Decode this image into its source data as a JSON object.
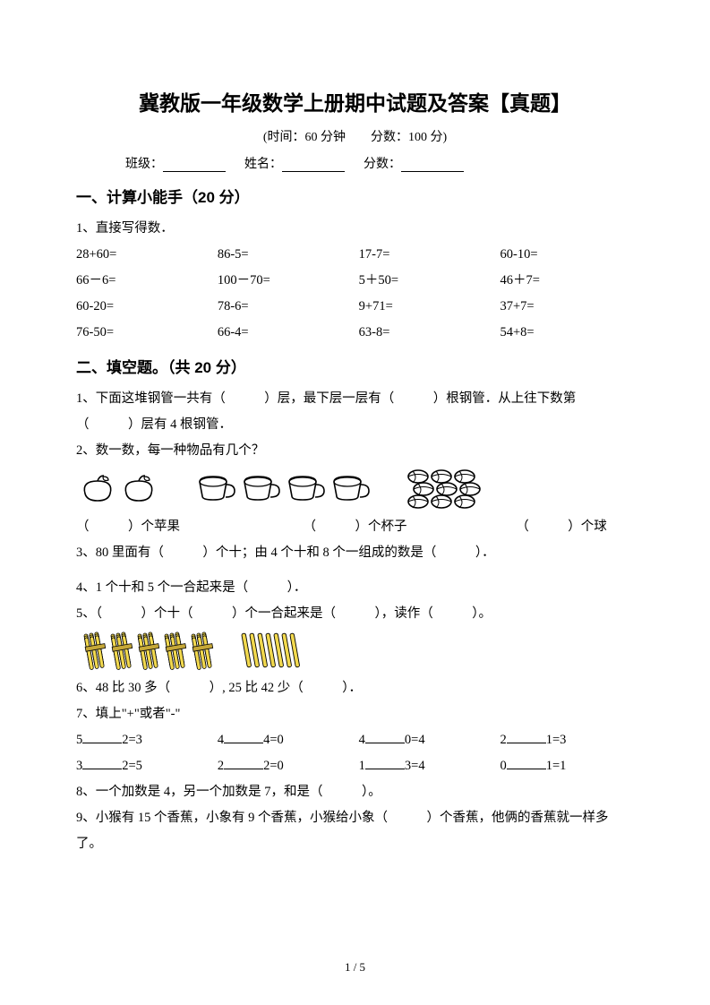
{
  "title": "冀教版一年级数学上册期中试题及答案【真题】",
  "meta": "(时间：60 分钟　　分数：100 分)",
  "id_labels": {
    "class": "班级：",
    "name": "姓名：",
    "score": "分数："
  },
  "sec1": {
    "heading": "一、计算小能手（20 分）",
    "q1_label": "1、直接写得数．",
    "rows": [
      [
        "28+60=",
        "86-5=",
        "17-7=",
        "60-10="
      ],
      [
        "66－6=",
        "100－70=",
        "5＋50=",
        "46＋7="
      ],
      [
        "60-20=",
        "78-6=",
        "9+71=",
        "37+7="
      ],
      [
        "76-50=",
        "66-4=",
        "63-8=",
        "54+8="
      ]
    ]
  },
  "sec2": {
    "heading": "二、填空题。（共 20 分）",
    "q1": "1、下面这堆钢管一共有（　　　）层，最下层一层有（　　　）根钢管．从上往下数第（　　　）层有 4 根钢管．",
    "q2": "2、数一数，每一种物品有几个？",
    "q2a": "（　　　）个苹果",
    "q2b": "（　　　）个杯子",
    "q2c": "（　　　）个球",
    "q3": "3、80 里面有（　　　）个十；由 4 个十和 8 个一组成的数是（　　　）．",
    "q4": "4、1 个十和 5 个一合起来是（　　　）．",
    "q5": "5、（　　　）个十（　　　）个一合起来是（　　　），读作（　　　）。",
    "q6": "6、48 比 30 多（　　　）, 25 比 42 少（　　　）．",
    "q7": "7、填上\"+\"或者\"-\"",
    "q7rows": [
      [
        "5",
        "2=3",
        "4",
        "4=0",
        "4",
        "0=4",
        "2",
        "1=3"
      ],
      [
        "3",
        "2=5",
        "2",
        "2=0",
        "1",
        "3=4",
        "0",
        "1=1"
      ]
    ],
    "q8": "8、一个加数是 4，另一个加数是 7，和是（　　　）。",
    "q9": "9、小猴有 15 个香蕉，小象有 9 个香蕉，小猴给小象（　　　）个香蕉，他俩的香蕉就一样多了。"
  },
  "pagenum": "1 / 5",
  "icons": {
    "apple_count": 2,
    "cup_count": 4,
    "ball_count": 9,
    "bundle_count": 5,
    "stick_count": 7,
    "colors": {
      "stroke": "#000000",
      "bundle": "#f2d94e",
      "stick": "#f2d94e"
    }
  }
}
